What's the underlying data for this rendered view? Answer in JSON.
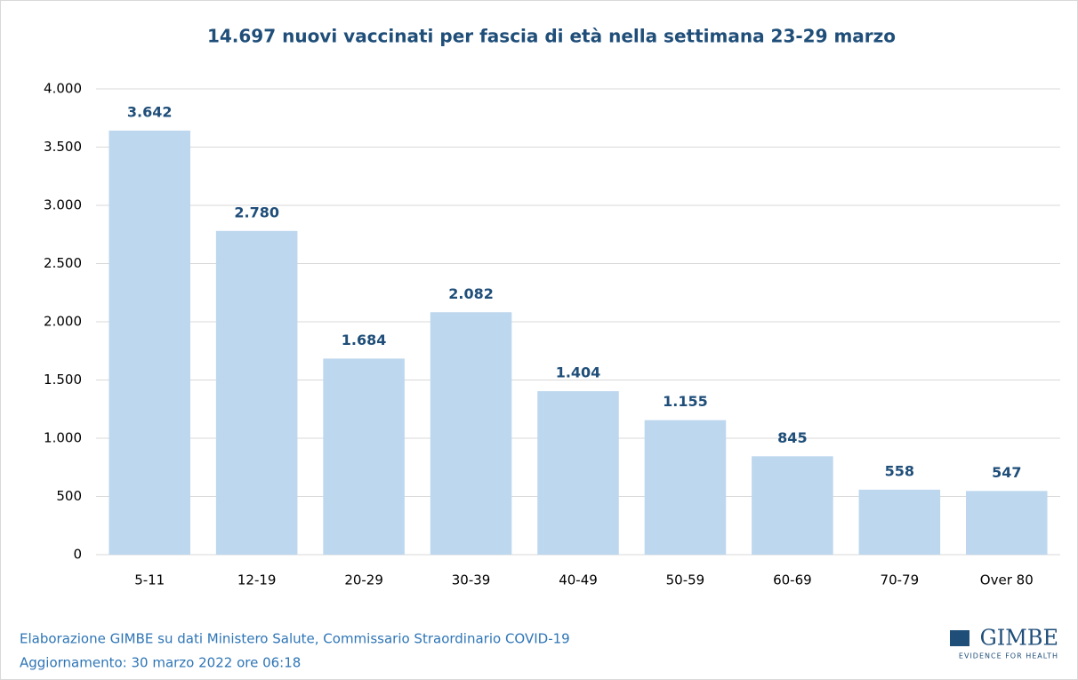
{
  "chart_data": {
    "type": "bar",
    "title": "14.697 nuovi vaccinati per fascia di età nella settimana 23-29 marzo",
    "categories": [
      "5-11",
      "12-19",
      "20-29",
      "30-39",
      "40-49",
      "50-59",
      "60-69",
      "70-79",
      "Over 80"
    ],
    "values": [
      3642,
      2780,
      1684,
      2082,
      1404,
      1155,
      845,
      558,
      547
    ],
    "value_labels": [
      "3.642",
      "2.780",
      "1.684",
      "2.082",
      "1.404",
      "1.155",
      "845",
      "558",
      "547"
    ],
    "color": "#bdd7ee",
    "ylim": [
      0,
      4000
    ],
    "yticks": [
      0,
      500,
      {
        "value": 1000,
        "label": "1.000"
      },
      {
        "value": 1500,
        "label": "1.500"
      },
      {
        "value": 2000,
        "label": "2.000"
      },
      {
        "value": 2500,
        "label": "2.500"
      },
      {
        "value": 3000,
        "label": "3.000"
      },
      {
        "value": 3500,
        "label": "3.500"
      },
      {
        "value": 4000,
        "label": "4.000"
      }
    ],
    "grid": true
  },
  "footer": {
    "source": "Elaborazione GIMBE su dati Ministero Salute, Commissario Straordinario COVID-19",
    "updated": "Aggiornamento: 30 marzo 2022 ore 06:18"
  },
  "logo": {
    "name": "GIMBE",
    "tagline": "EVIDENCE FOR HEALTH"
  }
}
